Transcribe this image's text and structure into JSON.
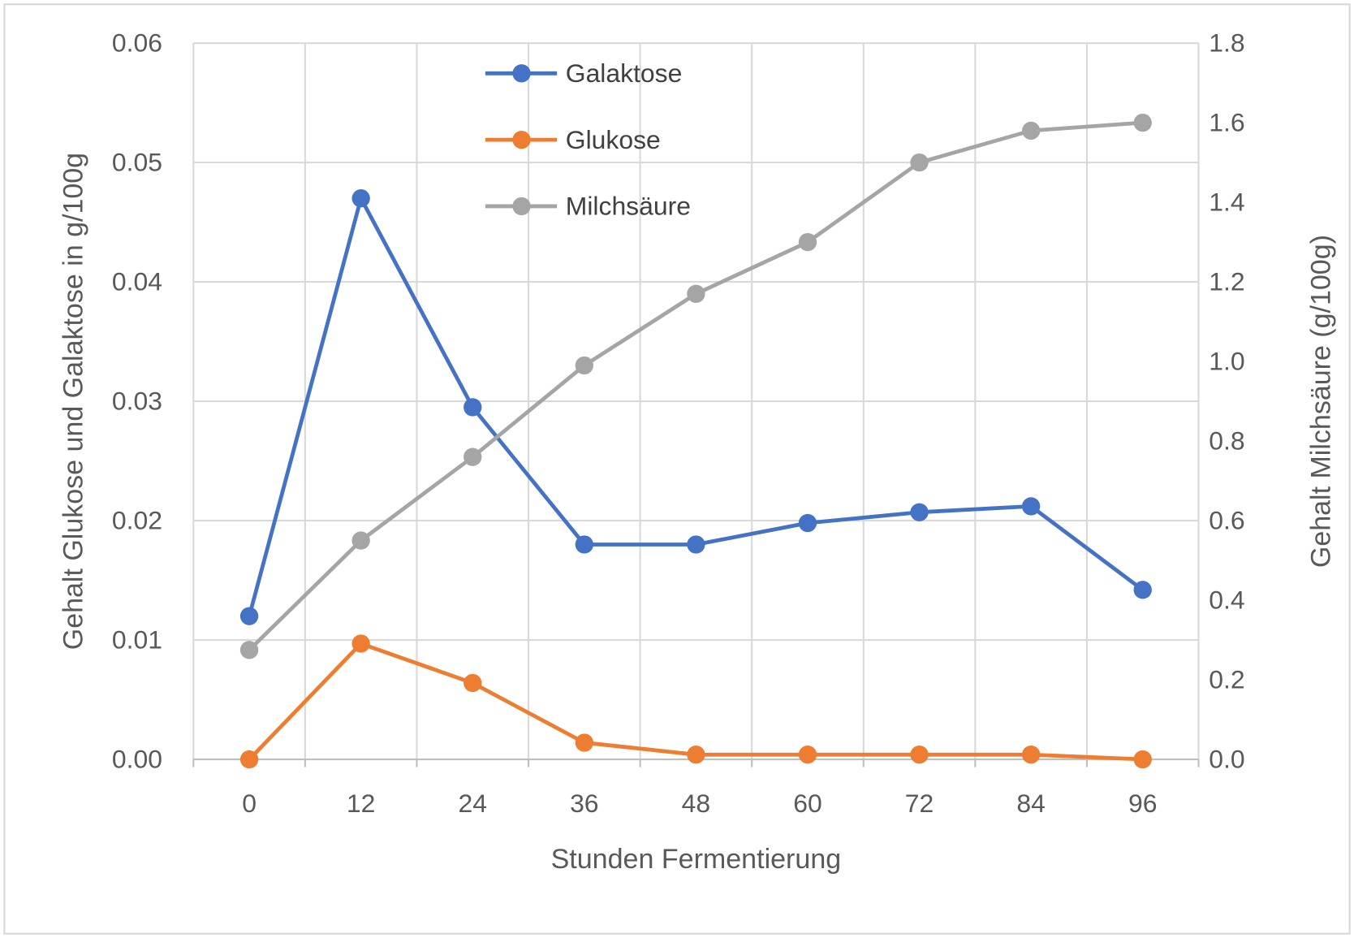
{
  "colors": {
    "text": "#595959",
    "grid": "#D9D9D9"
  },
  "chart_data": {
    "type": "line",
    "categories": [
      "0",
      "12",
      "24",
      "36",
      "48",
      "60",
      "72",
      "84",
      "96"
    ],
    "xlabel": "Stunden Fermentierung",
    "ylabel": "Gehalt Glukose und Galaktose in g/100g",
    "y2label": "Gehalt Milchsäure (g/100g)",
    "ylim": [
      0,
      0.06
    ],
    "y2lim": [
      0,
      1.8
    ],
    "yticks": [
      "0.00",
      "0.01",
      "0.02",
      "0.03",
      "0.04",
      "0.05",
      "0.06"
    ],
    "y2ticks": [
      "0.0",
      "0.2",
      "0.4",
      "0.6",
      "0.8",
      "1.0",
      "1.2",
      "1.4",
      "1.6",
      "1.8"
    ],
    "grid": true,
    "legend": "top-center",
    "series": [
      {
        "name": "Galaktose",
        "axis": "left",
        "color": "#4472C4",
        "values": [
          0.012,
          0.047,
          0.0295,
          0.018,
          0.018,
          0.0198,
          0.0207,
          0.0212,
          0.0142
        ]
      },
      {
        "name": "Glukose",
        "axis": "left",
        "color": "#ED7D31",
        "values": [
          0.0,
          0.0097,
          0.0064,
          0.0014,
          0.0004,
          0.0004,
          0.0004,
          0.0004,
          0.0
        ]
      },
      {
        "name": "Milchsäure",
        "axis": "right",
        "color": "#A5A5A5",
        "values": [
          0.275,
          0.55,
          0.76,
          0.99,
          1.17,
          1.3,
          1.5,
          1.58,
          1.6
        ]
      }
    ]
  }
}
